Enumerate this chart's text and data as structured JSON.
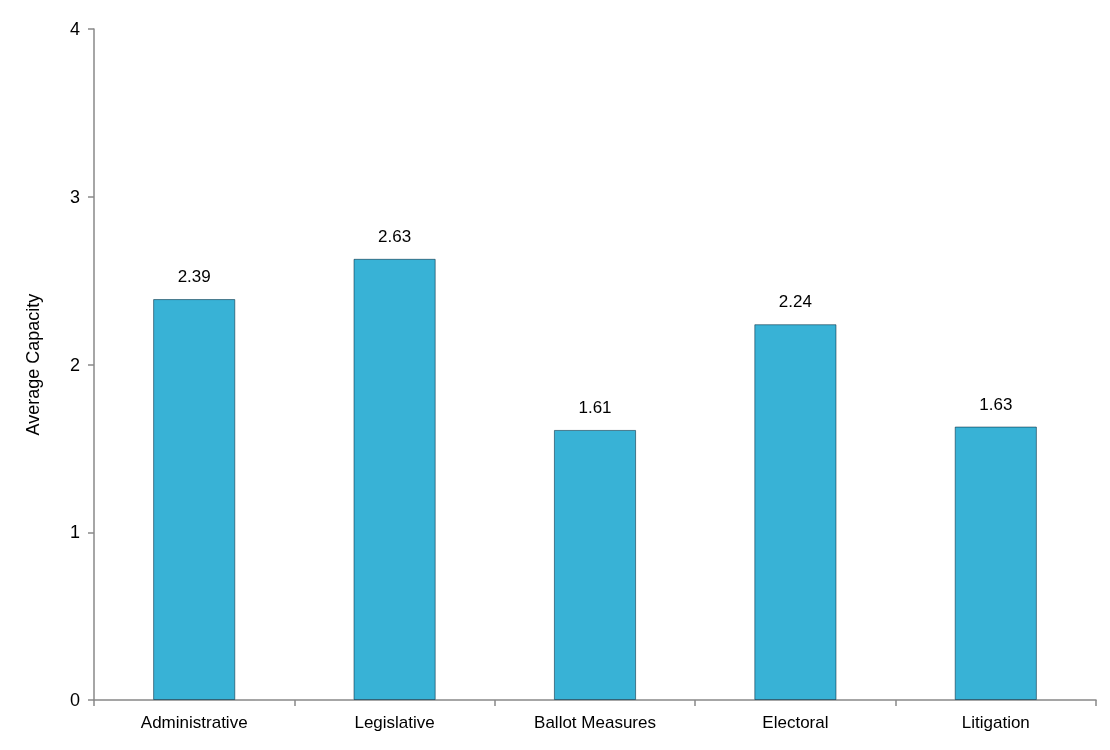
{
  "chart_data": {
    "type": "bar",
    "ylabel": "Average Capacity",
    "categories": [
      "Administrative",
      "Legislative",
      "Ballot Measures",
      "Electoral",
      "Litigation"
    ],
    "values": [
      2.39,
      2.63,
      1.61,
      2.24,
      1.63
    ],
    "color": "#38b2d6",
    "ylim": [
      0,
      4
    ],
    "yticks": [
      0,
      1,
      2,
      3,
      4
    ],
    "data_labels": true
  }
}
